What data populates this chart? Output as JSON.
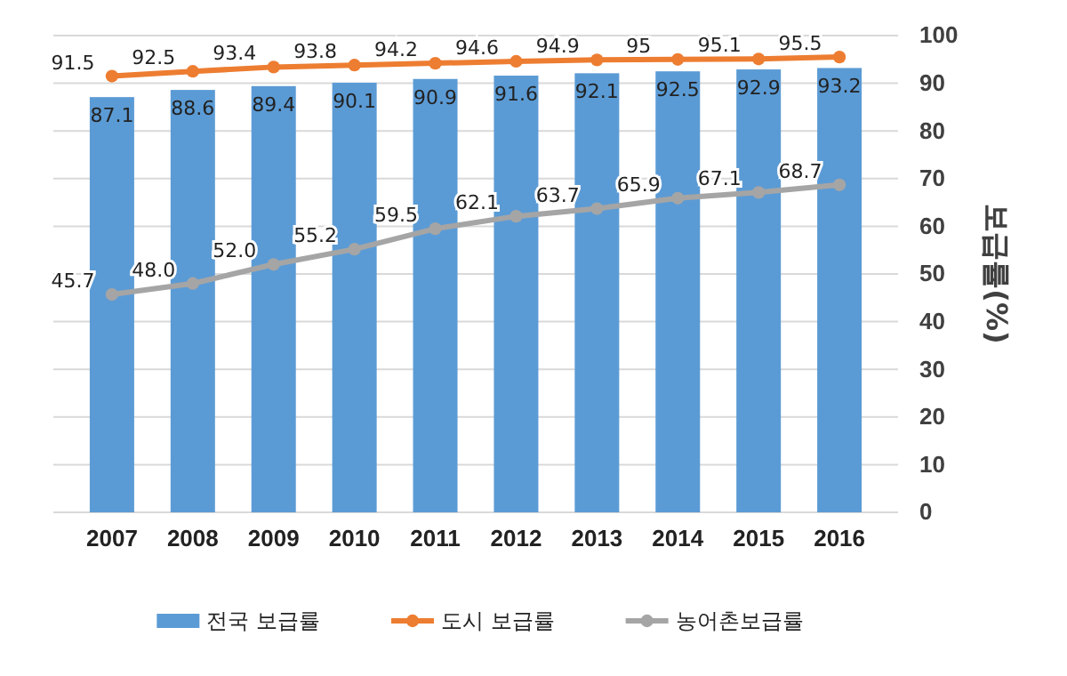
{
  "chart_data": {
    "type": "bar",
    "categories": [
      "2007",
      "2008",
      "2009",
      "2010",
      "2011",
      "2012",
      "2013",
      "2014",
      "2015",
      "2016"
    ],
    "series": [
      {
        "name": "전국 보급률",
        "color": "#5b9bd5",
        "values": [
          87.1,
          88.6,
          89.4,
          90.1,
          90.9,
          91.6,
          92.1,
          92.5,
          92.9,
          93.2
        ]
      },
      {
        "name": "도시 보급률",
        "type": "line",
        "color": "#ed7d31",
        "values": [
          91.5,
          92.5,
          93.4,
          93.8,
          94.2,
          94.6,
          94.9,
          95,
          95.1,
          95.5
        ]
      },
      {
        "name": "농어촌보급률",
        "type": "line",
        "color": "#a5a5a5",
        "values": [
          45.7,
          48.0,
          52.0,
          55.2,
          59.5,
          62.1,
          63.7,
          65.9,
          67.1,
          68.7
        ],
        "value_labels": [
          "45.7",
          "48.0",
          "52.0",
          "55.2",
          "59.5",
          "62.1",
          "63.7",
          "65.9",
          "67.1",
          "68.7"
        ]
      }
    ],
    "ylabel": "보급률(%)",
    "ylim": [
      0,
      100
    ],
    "yticks": [
      0,
      10,
      20,
      30,
      40,
      50,
      60,
      70,
      80,
      90,
      100
    ],
    "grid": "y",
    "legend": "bottom",
    "data_labels": true,
    "marker": "circle",
    "line_style": "solid"
  }
}
